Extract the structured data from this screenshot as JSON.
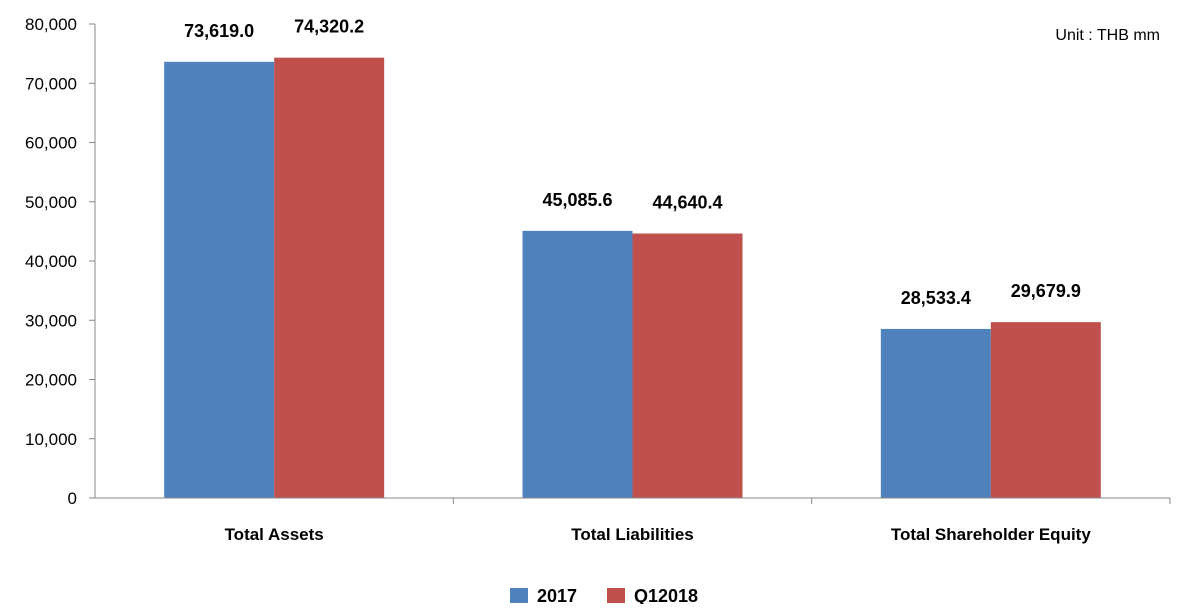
{
  "unit_note": "Unit : THB mm",
  "legend": {
    "items": [
      {
        "label": "2017",
        "color": "#4F81BD"
      },
      {
        "label": "Q12018",
        "color": "#C0504D"
      }
    ]
  },
  "chart_data": {
    "type": "bar",
    "categories": [
      "Total Assets",
      "Total Liabilities",
      "Total Shareholder Equity"
    ],
    "series": [
      {
        "name": "2017",
        "values": [
          73619.0,
          45085.6,
          28533.4
        ],
        "color": "#4F81BD"
      },
      {
        "name": "Q12018",
        "values": [
          74320.2,
          44640.4,
          29679.9
        ],
        "color": "#C0504D"
      }
    ],
    "data_labels": [
      [
        "73,619.0",
        "45,085.6",
        "28,533.4"
      ],
      [
        "74,320.2",
        "44,640.4",
        "29,679.9"
      ]
    ],
    "y_ticks": [
      "0",
      "10,000",
      "20,000",
      "30,000",
      "40,000",
      "50,000",
      "60,000",
      "70,000",
      "80,000"
    ],
    "title": "",
    "xlabel": "",
    "ylabel": "",
    "ylim": [
      0,
      80000
    ],
    "grid": false,
    "legend_position": "bottom-center"
  }
}
